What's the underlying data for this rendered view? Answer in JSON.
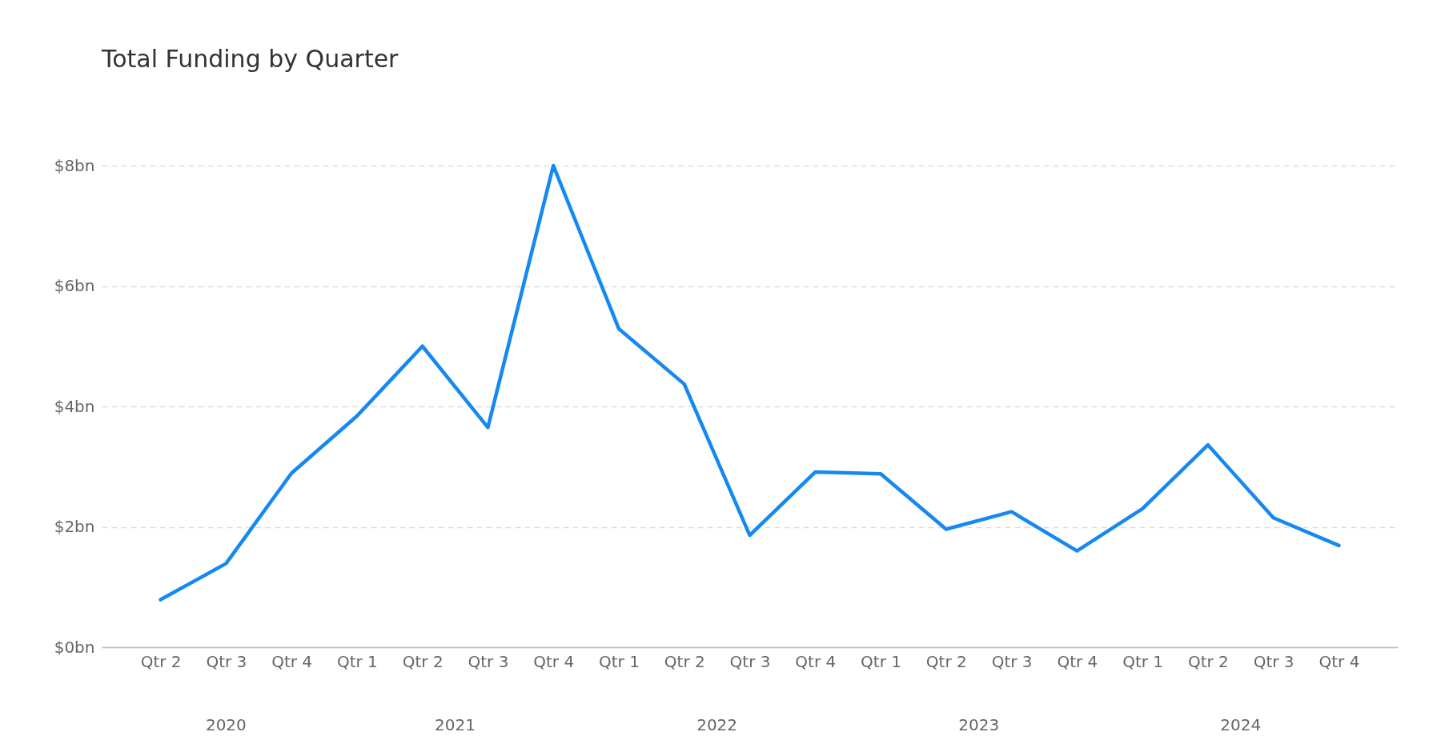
{
  "chart_data": {
    "type": "line",
    "title": "Total Funding by Quarter",
    "categories": [
      "Qtr 2",
      "Qtr 3",
      "Qtr 4",
      "Qtr 1",
      "Qtr 2",
      "Qtr 3",
      "Qtr 4",
      "Qtr 1",
      "Qtr 2",
      "Qtr 3",
      "Qtr 4",
      "Qtr 1",
      "Qtr 2",
      "Qtr 3",
      "Qtr 4",
      "Qtr 1",
      "Qtr 2",
      "Qtr 3",
      "Qtr 4"
    ],
    "series": [
      {
        "color": "#1589f0",
        "values": [
          0.79,
          1.39,
          2.89,
          3.84,
          5.0,
          3.65,
          8.0,
          5.29,
          4.37,
          1.86,
          2.91,
          2.88,
          1.96,
          2.25,
          1.6,
          2.3,
          3.36,
          2.15,
          1.69
        ]
      }
    ],
    "ylim": [
      0,
      8
    ],
    "yticks": [
      {
        "value": 0,
        "label": "$0bn"
      },
      {
        "value": 2,
        "label": "$2bn"
      },
      {
        "value": 4,
        "label": "$4bn"
      },
      {
        "value": 6,
        "label": "$6bn"
      },
      {
        "value": 8,
        "label": "$8bn"
      }
    ],
    "grid": "y",
    "annotations": [
      "2020",
      "2021",
      "2022",
      "2023",
      "2024"
    ]
  }
}
